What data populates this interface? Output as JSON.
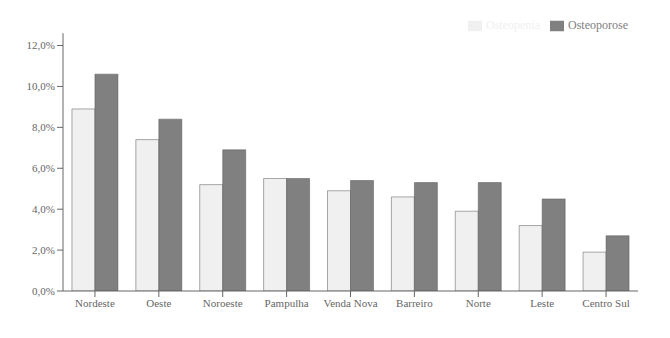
{
  "chart_data": {
    "type": "bar",
    "categories": [
      "Nordeste",
      "Oeste",
      "Noroeste",
      "Pampulha",
      "Venda Nova",
      "Barreiro",
      "Norte",
      "Leste",
      "Centro Sul"
    ],
    "series": [
      {
        "name": "Osteopenia",
        "color": "#f0f0f0",
        "values": [
          0.089,
          0.074,
          0.052,
          0.055,
          0.049,
          0.046,
          0.039,
          0.032,
          0.019
        ]
      },
      {
        "name": "Osteoporose",
        "color": "#808080",
        "values": [
          0.106,
          0.084,
          0.069,
          0.055,
          0.054,
          0.053,
          0.053,
          0.045,
          0.027
        ]
      }
    ],
    "ylim": [
      0.0,
      0.126
    ],
    "yticks": [
      {
        "value": 0.0,
        "label": "0,0%"
      },
      {
        "value": 0.02,
        "label": "2,0%"
      },
      {
        "value": 0.04,
        "label": "4,0%"
      },
      {
        "value": 0.06,
        "label": "6,0%"
      },
      {
        "value": 0.08,
        "label": "8,0%"
      },
      {
        "value": 0.1,
        "label": "10,0%"
      },
      {
        "value": 0.12,
        "label": "12,0%"
      }
    ],
    "grid": false,
    "legend": "upper right"
  }
}
